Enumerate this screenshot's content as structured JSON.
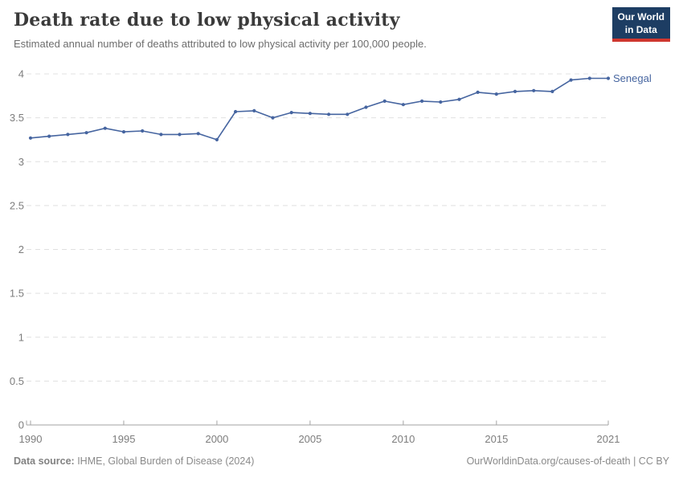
{
  "header": {
    "title": "Death rate due to low physical activity",
    "subtitle": "Estimated annual number of deaths attributed to low physical activity per 100,000 people.",
    "logo": {
      "line1": "Our World",
      "line2": "in Data",
      "bg_color": "#1d3d63",
      "accent_color": "#d0372f"
    }
  },
  "chart_data": {
    "type": "line",
    "title": "Death rate due to low physical activity",
    "x": [
      1990,
      1991,
      1992,
      1993,
      1994,
      1995,
      1996,
      1997,
      1998,
      1999,
      2000,
      2001,
      2002,
      2003,
      2004,
      2005,
      2006,
      2007,
      2008,
      2009,
      2010,
      2011,
      2012,
      2013,
      2014,
      2015,
      2016,
      2017,
      2018,
      2019,
      2020,
      2021
    ],
    "series": [
      {
        "name": "Senegal",
        "color": "#4665a0",
        "values": [
          3.27,
          3.29,
          3.31,
          3.33,
          3.38,
          3.34,
          3.35,
          3.31,
          3.31,
          3.32,
          3.25,
          3.57,
          3.58,
          3.5,
          3.56,
          3.55,
          3.54,
          3.54,
          3.62,
          3.69,
          3.65,
          3.69,
          3.68,
          3.71,
          3.79,
          3.77,
          3.8,
          3.81,
          3.8,
          3.93,
          3.95,
          3.95
        ]
      }
    ],
    "xlim": [
      1990,
      2021
    ],
    "ylim": [
      0,
      4
    ],
    "x_ticks": [
      1990,
      1995,
      2000,
      2005,
      2010,
      2015,
      2021
    ],
    "y_ticks": [
      0,
      0.5,
      1,
      1.5,
      2,
      2.5,
      3,
      3.5,
      4
    ],
    "grid": "horizontal-dashed",
    "legend_position": "end-of-line-label",
    "marker": "dot",
    "axis_color": "#a3a3a3",
    "grid_color": "#e0e0e0",
    "tick_label_color": "#7d7d7d"
  },
  "footer": {
    "datasource_label": "Data source:",
    "datasource_value": " IHME, Global Burden of Disease (2024)",
    "link": "OurWorldinData.org/causes-of-death | CC BY"
  }
}
